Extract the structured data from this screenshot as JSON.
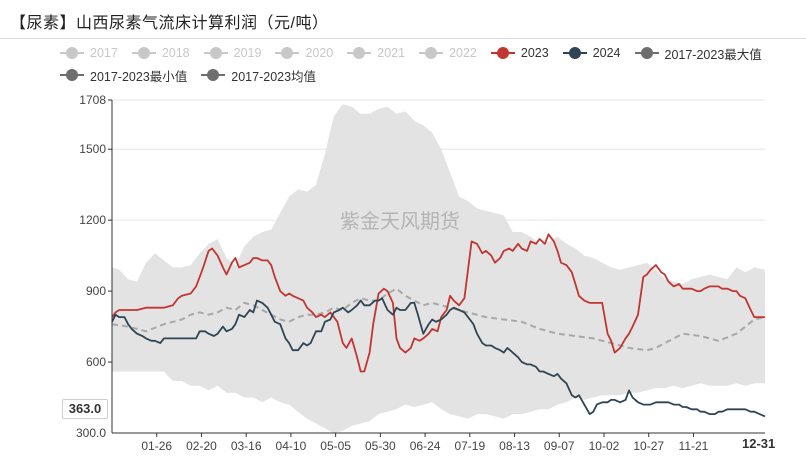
{
  "title": "【尿素】山西尿素气流床计算利润（元/吨）",
  "watermark": "紫金天风期货",
  "readout_value": "363.0",
  "end_date_label": "12-31",
  "legend": [
    {
      "label": "2017",
      "color": "#c8c8c8",
      "active": false
    },
    {
      "label": "2018",
      "color": "#c8c8c8",
      "active": false
    },
    {
      "label": "2019",
      "color": "#c8c8c8",
      "active": false
    },
    {
      "label": "2020",
      "color": "#c8c8c8",
      "active": false
    },
    {
      "label": "2021",
      "color": "#c8c8c8",
      "active": false
    },
    {
      "label": "2022",
      "color": "#c8c8c8",
      "active": false
    },
    {
      "label": "2023",
      "color": "#c23531",
      "active": true
    },
    {
      "label": "2024",
      "color": "#2f4554",
      "active": true
    },
    {
      "label": "2017-2023最大值",
      "color": "#6e6e6e",
      "active": true
    },
    {
      "label": "2017-2023最小值",
      "color": "#6e6e6e",
      "active": true
    },
    {
      "label": "2017-2023均值",
      "color": "#6e6e6e",
      "active": true
    }
  ],
  "chart_data": {
    "type": "line",
    "title": "【尿素】山西尿素气流床计算利润（元/吨）",
    "ylim": [
      300,
      1708
    ],
    "yticks": [
      300,
      600,
      900,
      1200,
      1500,
      1708
    ],
    "ytick_labels": [
      "300.0",
      "600",
      "900",
      "1200",
      "1500",
      "1708"
    ],
    "xlim_days": [
      1,
      366
    ],
    "xticks": [
      {
        "label": "01-26",
        "day": 26
      },
      {
        "label": "02-20",
        "day": 51
      },
      {
        "label": "03-16",
        "day": 76
      },
      {
        "label": "04-10",
        "day": 101
      },
      {
        "label": "05-05",
        "day": 126
      },
      {
        "label": "05-30",
        "day": 151
      },
      {
        "label": "06-24",
        "day": 176
      },
      {
        "label": "07-19",
        "day": 201
      },
      {
        "label": "08-13",
        "day": 226
      },
      {
        "label": "09-07",
        "day": 251
      },
      {
        "label": "10-02",
        "day": 276
      },
      {
        "label": "10-27",
        "day": 301
      },
      {
        "label": "11-21",
        "day": 326
      }
    ],
    "grid": true,
    "legend_position": "top",
    "band": {
      "name": "2017-2023 range",
      "color": "#e3e3e3",
      "x": [
        1,
        5,
        10,
        15,
        20,
        25,
        30,
        35,
        40,
        45,
        50,
        55,
        60,
        65,
        70,
        75,
        80,
        85,
        90,
        95,
        100,
        105,
        110,
        115,
        120,
        125,
        130,
        135,
        140,
        145,
        150,
        155,
        160,
        165,
        170,
        175,
        180,
        185,
        190,
        195,
        200,
        205,
        210,
        215,
        220,
        225,
        230,
        235,
        240,
        245,
        250,
        255,
        260,
        265,
        270,
        275,
        280,
        285,
        290,
        295,
        300,
        305,
        310,
        315,
        320,
        325,
        330,
        335,
        340,
        345,
        350,
        355,
        360,
        366
      ],
      "max": [
        1000,
        990,
        950,
        940,
        1020,
        1060,
        1030,
        1000,
        1000,
        1010,
        1060,
        1100,
        1120,
        1040,
        1010,
        1090,
        1130,
        1150,
        1160,
        1230,
        1300,
        1330,
        1320,
        1350,
        1480,
        1640,
        1690,
        1680,
        1650,
        1650,
        1670,
        1680,
        1650,
        1660,
        1620,
        1600,
        1570,
        1500,
        1400,
        1300,
        1280,
        1250,
        1240,
        1230,
        1220,
        1150,
        1150,
        1130,
        1100,
        1110,
        1130,
        1100,
        1080,
        1050,
        1040,
        1020,
        1000,
        990,
        1000,
        1010,
        1020,
        990,
        950,
        940,
        930,
        950,
        960,
        970,
        960,
        950,
        1000,
        980,
        1000,
        990
      ],
      "min": [
        560,
        560,
        560,
        560,
        560,
        560,
        560,
        520,
        520,
        500,
        500,
        480,
        500,
        470,
        470,
        450,
        450,
        430,
        450,
        430,
        420,
        390,
        360,
        340,
        320,
        300,
        310,
        330,
        340,
        350,
        380,
        390,
        400,
        420,
        410,
        420,
        430,
        400,
        380,
        370,
        360,
        380,
        380,
        370,
        360,
        380,
        380,
        390,
        400,
        400,
        420,
        430,
        450,
        440,
        450,
        460,
        460,
        460,
        470,
        470,
        480,
        490,
        490,
        500,
        490,
        500,
        510,
        500,
        500,
        500,
        510,
        500,
        510,
        510
      ]
    },
    "series": [
      {
        "name": "2017-2023均值",
        "color": "#a8a8a8",
        "dashed": true,
        "x": [
          1,
          10,
          20,
          30,
          40,
          45,
          50,
          55,
          60,
          65,
          70,
          75,
          80,
          85,
          90,
          95,
          100,
          105,
          110,
          115,
          120,
          125,
          130,
          135,
          140,
          145,
          150,
          155,
          160,
          165,
          170,
          175,
          180,
          185,
          190,
          195,
          200,
          210,
          220,
          230,
          240,
          250,
          260,
          270,
          280,
          290,
          300,
          305,
          310,
          320,
          330,
          340,
          350,
          360,
          366
        ],
        "y": [
          760,
          750,
          730,
          760,
          780,
          800,
          810,
          800,
          810,
          830,
          820,
          850,
          840,
          820,
          800,
          780,
          770,
          790,
          800,
          800,
          810,
          830,
          820,
          850,
          870,
          860,
          860,
          890,
          910,
          880,
          860,
          840,
          850,
          840,
          830,
          820,
          810,
          790,
          780,
          770,
          740,
          720,
          710,
          700,
          680,
          660,
          650,
          660,
          680,
          720,
          710,
          690,
          720,
          780,
          790
        ]
      },
      {
        "name": "2023",
        "color": "#c23531",
        "x": [
          1,
          3,
          5,
          10,
          15,
          20,
          25,
          30,
          35,
          38,
          40,
          45,
          48,
          50,
          52,
          55,
          57,
          60,
          63,
          65,
          68,
          70,
          72,
          75,
          78,
          80,
          82,
          85,
          88,
          90,
          92,
          95,
          98,
          100,
          102,
          105,
          108,
          110,
          113,
          115,
          118,
          120,
          123,
          125,
          127,
          130,
          132,
          135,
          138,
          140,
          142,
          145,
          147,
          150,
          153,
          155,
          158,
          160,
          162,
          165,
          168,
          170,
          173,
          175,
          178,
          180,
          183,
          185,
          188,
          190,
          192,
          195,
          198,
          200,
          202,
          205,
          208,
          210,
          213,
          215,
          218,
          220,
          223,
          225,
          228,
          230,
          233,
          235,
          238,
          240,
          243,
          245,
          248,
          250,
          252,
          255,
          258,
          260,
          262,
          265,
          268,
          270,
          272,
          275,
          278,
          280,
          282,
          285,
          288,
          290,
          292,
          295,
          298,
          300,
          302,
          305,
          308,
          310,
          312,
          315,
          318,
          320,
          322,
          325,
          328,
          330,
          332,
          335,
          338,
          340,
          342,
          345,
          348,
          350,
          352,
          355,
          358,
          360,
          362,
          366
        ],
        "y": [
          790,
          810,
          820,
          820,
          820,
          830,
          830,
          830,
          840,
          870,
          880,
          890,
          920,
          960,
          1000,
          1070,
          1080,
          1050,
          1000,
          970,
          1020,
          1040,
          1000,
          1010,
          1020,
          1040,
          1040,
          1030,
          1030,
          1010,
          960,
          900,
          880,
          890,
          880,
          870,
          860,
          830,
          810,
          790,
          800,
          790,
          810,
          790,
          770,
          680,
          660,
          700,
          620,
          560,
          560,
          640,
          760,
          890,
          910,
          900,
          850,
          700,
          660,
          640,
          660,
          700,
          690,
          700,
          720,
          740,
          730,
          790,
          820,
          880,
          860,
          840,
          870,
          990,
          1110,
          1100,
          1060,
          1070,
          1050,
          1020,
          1040,
          1070,
          1080,
          1070,
          1100,
          1080,
          1070,
          1110,
          1100,
          1120,
          1100,
          1140,
          1110,
          1070,
          1020,
          1010,
          980,
          930,
          880,
          860,
          850,
          850,
          850,
          850,
          720,
          690,
          640,
          660,
          700,
          720,
          750,
          800,
          960,
          970,
          990,
          1010,
          980,
          970,
          940,
          920,
          930,
          910,
          910,
          910,
          900,
          900,
          910,
          920,
          920,
          920,
          910,
          910,
          900,
          900,
          880,
          870,
          820,
          790,
          790,
          790
        ]
      },
      {
        "name": "2024",
        "color": "#2f4554",
        "x": [
          1,
          3,
          5,
          8,
          10,
          12,
          15,
          18,
          20,
          23,
          25,
          28,
          30,
          33,
          35,
          38,
          40,
          43,
          45,
          48,
          50,
          53,
          55,
          58,
          60,
          63,
          65,
          68,
          70,
          72,
          75,
          78,
          80,
          82,
          85,
          88,
          90,
          92,
          95,
          98,
          100,
          102,
          105,
          108,
          110,
          112,
          115,
          118,
          120,
          123,
          125,
          128,
          130,
          133,
          135,
          138,
          140,
          142,
          145,
          148,
          150,
          152,
          155,
          158,
          160,
          162,
          165,
          168,
          170,
          172,
          175,
          178,
          180,
          182,
          185,
          188,
          190,
          192,
          195,
          198,
          200,
          203,
          205,
          208,
          210,
          213,
          215,
          218,
          220,
          222,
          225,
          228,
          230,
          233,
          235,
          238,
          240,
          242,
          245,
          248,
          250,
          252,
          255,
          258,
          260,
          262,
          265,
          268,
          270,
          272,
          275,
          278,
          280,
          282,
          285,
          288,
          290,
          292,
          295,
          298,
          300,
          302,
          305,
          308,
          310,
          312,
          315,
          318,
          320,
          322,
          325,
          328,
          330,
          332,
          335,
          338,
          340,
          342,
          345,
          348,
          350,
          352,
          355,
          358,
          360,
          363,
          366
        ],
        "y": [
          770,
          800,
          790,
          790,
          760,
          740,
          720,
          710,
          700,
          690,
          690,
          680,
          700,
          700,
          700,
          700,
          700,
          700,
          700,
          700,
          730,
          730,
          720,
          710,
          720,
          750,
          730,
          740,
          760,
          800,
          790,
          820,
          810,
          860,
          850,
          830,
          800,
          770,
          760,
          700,
          680,
          650,
          650,
          680,
          670,
          680,
          730,
          730,
          770,
          780,
          810,
          820,
          830,
          810,
          820,
          840,
          860,
          840,
          840,
          860,
          860,
          870,
          820,
          800,
          830,
          820,
          820,
          850,
          850,
          800,
          720,
          760,
          780,
          770,
          780,
          800,
          820,
          830,
          820,
          810,
          790,
          760,
          720,
          680,
          670,
          670,
          660,
          650,
          640,
          660,
          640,
          620,
          600,
          590,
          590,
          580,
          560,
          560,
          550,
          540,
          550,
          530,
          510,
          460,
          450,
          460,
          420,
          380,
          390,
          420,
          430,
          430,
          440,
          440,
          430,
          440,
          480,
          450,
          430,
          420,
          420,
          420,
          430,
          430,
          430,
          430,
          420,
          420,
          410,
          410,
          400,
          400,
          390,
          390,
          380,
          380,
          390,
          390,
          400,
          400,
          400,
          400,
          400,
          390,
          390,
          380,
          370
        ]
      }
    ]
  }
}
